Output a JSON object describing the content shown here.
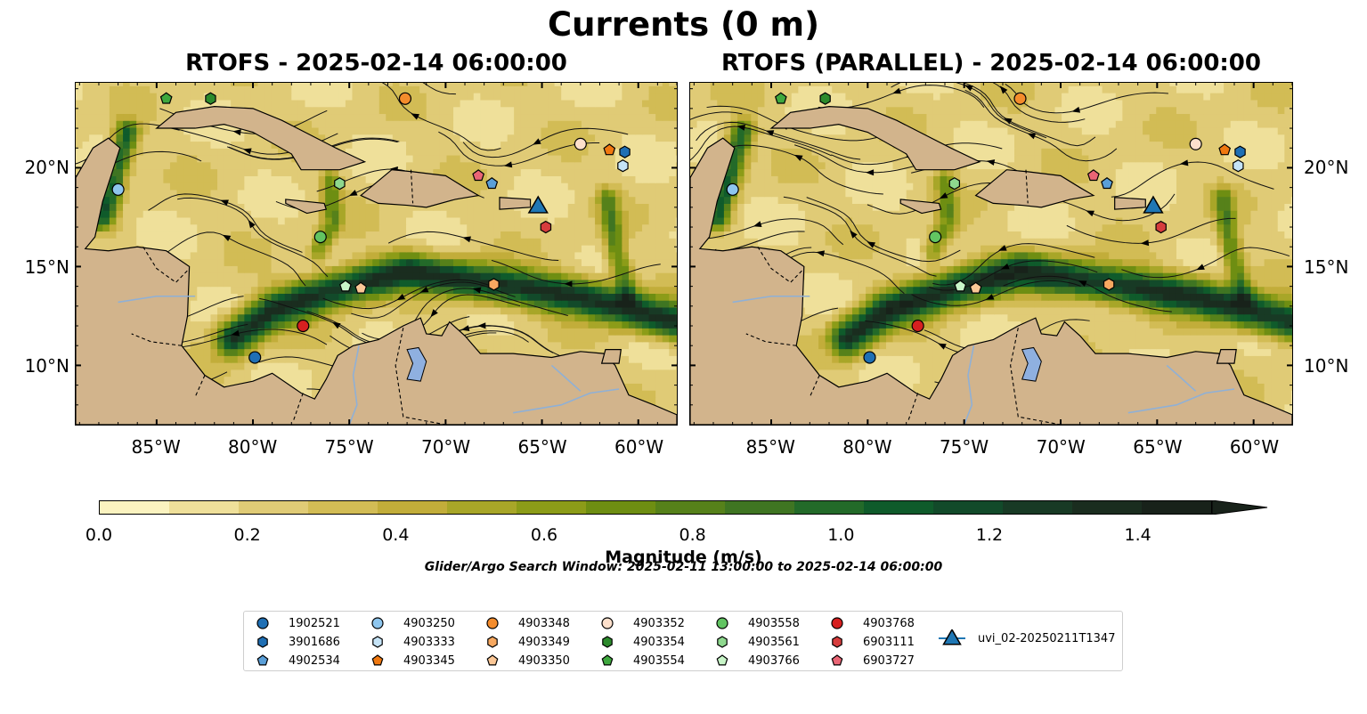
{
  "figure": {
    "title": "Currents (0 m)",
    "panels": [
      {
        "title": "RTOFS - 2025-02-14 06:00:00"
      },
      {
        "title": "RTOFS (PARALLEL) - 2025-02-14 06:00:00"
      }
    ],
    "map_extent": {
      "lon_min": -89.2,
      "lon_max": -58.0,
      "lat_min": 7.0,
      "lat_max": 24.3
    },
    "lat_ticks": [
      "10°N",
      "15°N",
      "20°N"
    ],
    "lat_values": [
      10,
      15,
      20
    ],
    "lon_ticks": [
      "85°W",
      "80°W",
      "75°W",
      "70°W",
      "65°W",
      "60°W"
    ],
    "lon_values": [
      -85,
      -80,
      -75,
      -70,
      -65,
      -60
    ],
    "land_color": "#d2b48c",
    "river_color": "#8fb0d6",
    "lake_color": "#8fb0e0"
  },
  "colorbar": {
    "label": "Magnitude (m/s)",
    "min": 0.0,
    "max": 1.5,
    "step": 0.1,
    "extend": "max",
    "tick_labels": [
      "0.0",
      "0.2",
      "0.4",
      "0.6",
      "0.8",
      "1.0",
      "1.2",
      "1.4"
    ],
    "tick_values": [
      0.0,
      0.2,
      0.4,
      0.6,
      0.8,
      1.0,
      1.2,
      1.4
    ],
    "colors": [
      "#fbf3c0",
      "#efe09a",
      "#e0cb76",
      "#d2bc55",
      "#c2ad3a",
      "#a8a628",
      "#8c9c18",
      "#6e8e12",
      "#56811a",
      "#3f7522",
      "#236a29",
      "#0f5b2b",
      "#124a2a",
      "#183a25",
      "#1a2d1f",
      "#18221a"
    ]
  },
  "search_window": "Glider/Argo Search Window: 2025-02-11 13:00:00 to 2025-02-14 06:00:00",
  "legend": {
    "columns": 7,
    "items": [
      {
        "label": "1902521",
        "shape": "circle",
        "color": "#1f6fb4"
      },
      {
        "label": "3901686",
        "shape": "hexagon",
        "color": "#1f6fb4"
      },
      {
        "label": "4902534",
        "shape": "pentagon",
        "color": "#5a9fd8"
      },
      {
        "label": "4903250",
        "shape": "circle",
        "color": "#8ec6ee"
      },
      {
        "label": "4903333",
        "shape": "hexagon",
        "color": "#c5e3f6"
      },
      {
        "label": "4903345",
        "shape": "pentagon",
        "color": "#f07810"
      },
      {
        "label": "4903348",
        "shape": "circle",
        "color": "#f48c2c"
      },
      {
        "label": "4903349",
        "shape": "hexagon",
        "color": "#f7a860"
      },
      {
        "label": "4903350",
        "shape": "pentagon",
        "color": "#fbc796"
      },
      {
        "label": "4903352",
        "shape": "circle",
        "color": "#fde0cc"
      },
      {
        "label": "4903354",
        "shape": "hexagon",
        "color": "#2c8a2c"
      },
      {
        "label": "4903554",
        "shape": "pentagon",
        "color": "#3ea83e"
      },
      {
        "label": "4903558",
        "shape": "circle",
        "color": "#62c462"
      },
      {
        "label": "4903561",
        "shape": "hexagon",
        "color": "#8ed88e"
      },
      {
        "label": "4903766",
        "shape": "pentagon",
        "color": "#c8f5c8"
      },
      {
        "label": "4903768",
        "shape": "circle",
        "color": "#d62020"
      },
      {
        "label": "6903111",
        "shape": "hexagon",
        "color": "#d63d3d"
      },
      {
        "label": "6903727",
        "shape": "pentagon",
        "color": "#ea6575"
      },
      {
        "label": "uvi_02-20250211T1347",
        "shape": "triangle",
        "color": "#1f77b4",
        "line": true
      }
    ]
  },
  "floats": [
    {
      "id": "1902521",
      "lon": -79.9,
      "lat": 10.4,
      "lon_p": -79.9,
      "lat_p": 10.4
    },
    {
      "id": "3901686",
      "lon": -60.7,
      "lat": 20.8,
      "lon_p": -60.7,
      "lat_p": 20.8
    },
    {
      "id": "4902534",
      "lon": -67.6,
      "lat": 19.2,
      "lon_p": -67.6,
      "lat_p": 19.2
    },
    {
      "id": "4903250",
      "lon": -87.0,
      "lat": 18.9,
      "lon_p": -87.0,
      "lat_p": 18.9
    },
    {
      "id": "4903333",
      "lon": -60.8,
      "lat": 20.1,
      "lon_p": -60.8,
      "lat_p": 20.1
    },
    {
      "id": "4903345",
      "lon": -61.5,
      "lat": 20.9,
      "lon_p": -61.5,
      "lat_p": 20.9
    },
    {
      "id": "4903348",
      "lon": -72.1,
      "lat": 23.5,
      "lon_p": -72.1,
      "lat_p": 23.5
    },
    {
      "id": "4903349",
      "lon": -67.5,
      "lat": 14.1,
      "lon_p": -67.5,
      "lat_p": 14.1
    },
    {
      "id": "4903350",
      "lon": -74.4,
      "lat": 13.9,
      "lon_p": -74.4,
      "lat_p": 13.9
    },
    {
      "id": "4903352",
      "lon": -63.0,
      "lat": 21.2,
      "lon_p": -63.0,
      "lat_p": 21.2
    },
    {
      "id": "4903354",
      "lon": -82.2,
      "lat": 23.5,
      "lon_p": -82.2,
      "lat_p": 23.5
    },
    {
      "id": "4903554",
      "lon": -84.5,
      "lat": 23.5,
      "lon_p": -84.5,
      "lat_p": 23.5
    },
    {
      "id": "4903558",
      "lon": -76.5,
      "lat": 16.5,
      "lon_p": -76.5,
      "lat_p": 16.5
    },
    {
      "id": "4903561",
      "lon": -75.5,
      "lat": 19.2,
      "lon_p": -75.5,
      "lat_p": 19.2
    },
    {
      "id": "4903766",
      "lon": -75.2,
      "lat": 14.0,
      "lon_p": -75.2,
      "lat_p": 14.0
    },
    {
      "id": "4903768",
      "lon": -77.4,
      "lat": 12.0,
      "lon_p": -77.4,
      "lat_p": 12.0
    },
    {
      "id": "6903111",
      "lon": -64.8,
      "lat": 17.0,
      "lon_p": -64.8,
      "lat_p": 17.0
    },
    {
      "id": "6903727",
      "lon": -68.3,
      "lat": 19.6,
      "lon_p": -68.3,
      "lat_p": 19.6
    },
    {
      "id": "uvi_02-20250211T1347",
      "lon": -65.2,
      "lat": 18.1,
      "lon_p": -65.2,
      "lat_p": 18.1
    }
  ],
  "land": [
    [
      [
        -89.2,
        7.0
      ],
      [
        -89.2,
        19.5
      ],
      [
        -88.3,
        21.0
      ],
      [
        -87.5,
        21.5
      ],
      [
        -86.9,
        21.0
      ],
      [
        -87.4,
        19.5
      ],
      [
        -87.8,
        18.3
      ],
      [
        -88.2,
        16.5
      ],
      [
        -88.7,
        15.9
      ],
      [
        -87.5,
        15.8
      ],
      [
        -86.0,
        16.0
      ],
      [
        -84.5,
        15.8
      ],
      [
        -83.3,
        15.0
      ],
      [
        -83.4,
        12.5
      ],
      [
        -83.7,
        11.0
      ],
      [
        -82.5,
        9.5
      ],
      [
        -81.5,
        8.9
      ],
      [
        -80.0,
        9.2
      ],
      [
        -79.0,
        9.6
      ],
      [
        -77.5,
        8.6
      ],
      [
        -76.8,
        8.3
      ],
      [
        -76.2,
        9.3
      ],
      [
        -75.6,
        10.5
      ],
      [
        -74.8,
        11.0
      ],
      [
        -73.5,
        11.3
      ],
      [
        -72.2,
        12.0
      ],
      [
        -71.3,
        12.4
      ],
      [
        -71.0,
        11.6
      ],
      [
        -70.2,
        11.5
      ],
      [
        -69.8,
        12.2
      ],
      [
        -69.0,
        11.5
      ],
      [
        -68.2,
        10.6
      ],
      [
        -66.5,
        10.6
      ],
      [
        -64.5,
        10.4
      ],
      [
        -63.0,
        10.7
      ],
      [
        -61.8,
        10.6
      ],
      [
        -61.2,
        10.0
      ],
      [
        -60.5,
        8.5
      ],
      [
        -59.2,
        8.0
      ],
      [
        -58.0,
        7.5
      ],
      [
        -58.0,
        7.0
      ]
    ],
    [
      [
        -85.0,
        22.0
      ],
      [
        -84.0,
        22.8
      ],
      [
        -82.0,
        23.1
      ],
      [
        -80.0,
        23.0
      ],
      [
        -78.5,
        22.4
      ],
      [
        -77.3,
        21.8
      ],
      [
        -75.7,
        21.0
      ],
      [
        -74.2,
        20.3
      ],
      [
        -75.5,
        19.9
      ],
      [
        -77.5,
        19.9
      ],
      [
        -78.0,
        20.7
      ],
      [
        -80.0,
        21.8
      ],
      [
        -81.5,
        22.2
      ],
      [
        -83.0,
        22.0
      ]
    ],
    [
      [
        -78.3,
        18.4
      ],
      [
        -76.3,
        18.2
      ],
      [
        -76.2,
        17.9
      ],
      [
        -77.2,
        17.7
      ],
      [
        -78.3,
        18.2
      ]
    ],
    [
      [
        -74.4,
        18.6
      ],
      [
        -72.8,
        19.9
      ],
      [
        -71.7,
        19.8
      ],
      [
        -70.0,
        19.6
      ],
      [
        -69.0,
        19.0
      ],
      [
        -68.3,
        18.6
      ],
      [
        -69.5,
        18.4
      ],
      [
        -71.0,
        18.0
      ],
      [
        -72.0,
        18.1
      ],
      [
        -73.5,
        18.2
      ]
    ],
    [
      [
        -67.2,
        18.5
      ],
      [
        -65.6,
        18.4
      ],
      [
        -65.6,
        18.0
      ],
      [
        -67.2,
        17.9
      ]
    ],
    [
      [
        -61.7,
        10.8
      ],
      [
        -60.9,
        10.8
      ],
      [
        -61.0,
        10.1
      ],
      [
        -61.9,
        10.1
      ]
    ]
  ],
  "lakes": [
    [
      [
        -72.0,
        10.8
      ],
      [
        -71.4,
        10.9
      ],
      [
        -71.0,
        10.2
      ],
      [
        -71.3,
        9.2
      ],
      [
        -72.0,
        9.3
      ],
      [
        -71.7,
        10.1
      ]
    ]
  ],
  "rivers": [
    [
      [
        -83.0,
        13.5
      ],
      [
        -85.0,
        13.5
      ],
      [
        -87.0,
        13.2
      ]
    ],
    [
      [
        -74.5,
        11.0
      ],
      [
        -74.8,
        9.5
      ],
      [
        -74.6,
        8.0
      ],
      [
        -75.0,
        7.0
      ]
    ],
    [
      [
        -66.5,
        7.6
      ],
      [
        -64.0,
        8.0
      ],
      [
        -62.5,
        8.6
      ],
      [
        -61.0,
        8.8
      ]
    ],
    [
      [
        -64.5,
        10.0
      ],
      [
        -63.8,
        9.4
      ],
      [
        -63.0,
        8.7
      ]
    ]
  ],
  "borders": [
    [
      [
        -85.7,
        16.0
      ],
      [
        -85.0,
        14.9
      ],
      [
        -84.0,
        14.2
      ],
      [
        -83.4,
        14.8
      ]
    ],
    [
      [
        -83.7,
        11.0
      ],
      [
        -85.3,
        11.2
      ],
      [
        -86.3,
        11.6
      ]
    ],
    [
      [
        -82.5,
        9.5
      ],
      [
        -83.0,
        8.4
      ]
    ],
    [
      [
        -77.4,
        8.6
      ],
      [
        -77.9,
        7.2
      ]
    ],
    [
      [
        -72.2,
        11.9
      ],
      [
        -72.6,
        10.0
      ],
      [
        -72.2,
        7.4
      ],
      [
        -70.0,
        7.0
      ]
    ],
    [
      [
        -71.8,
        19.9
      ],
      [
        -71.7,
        18.2
      ]
    ]
  ]
}
